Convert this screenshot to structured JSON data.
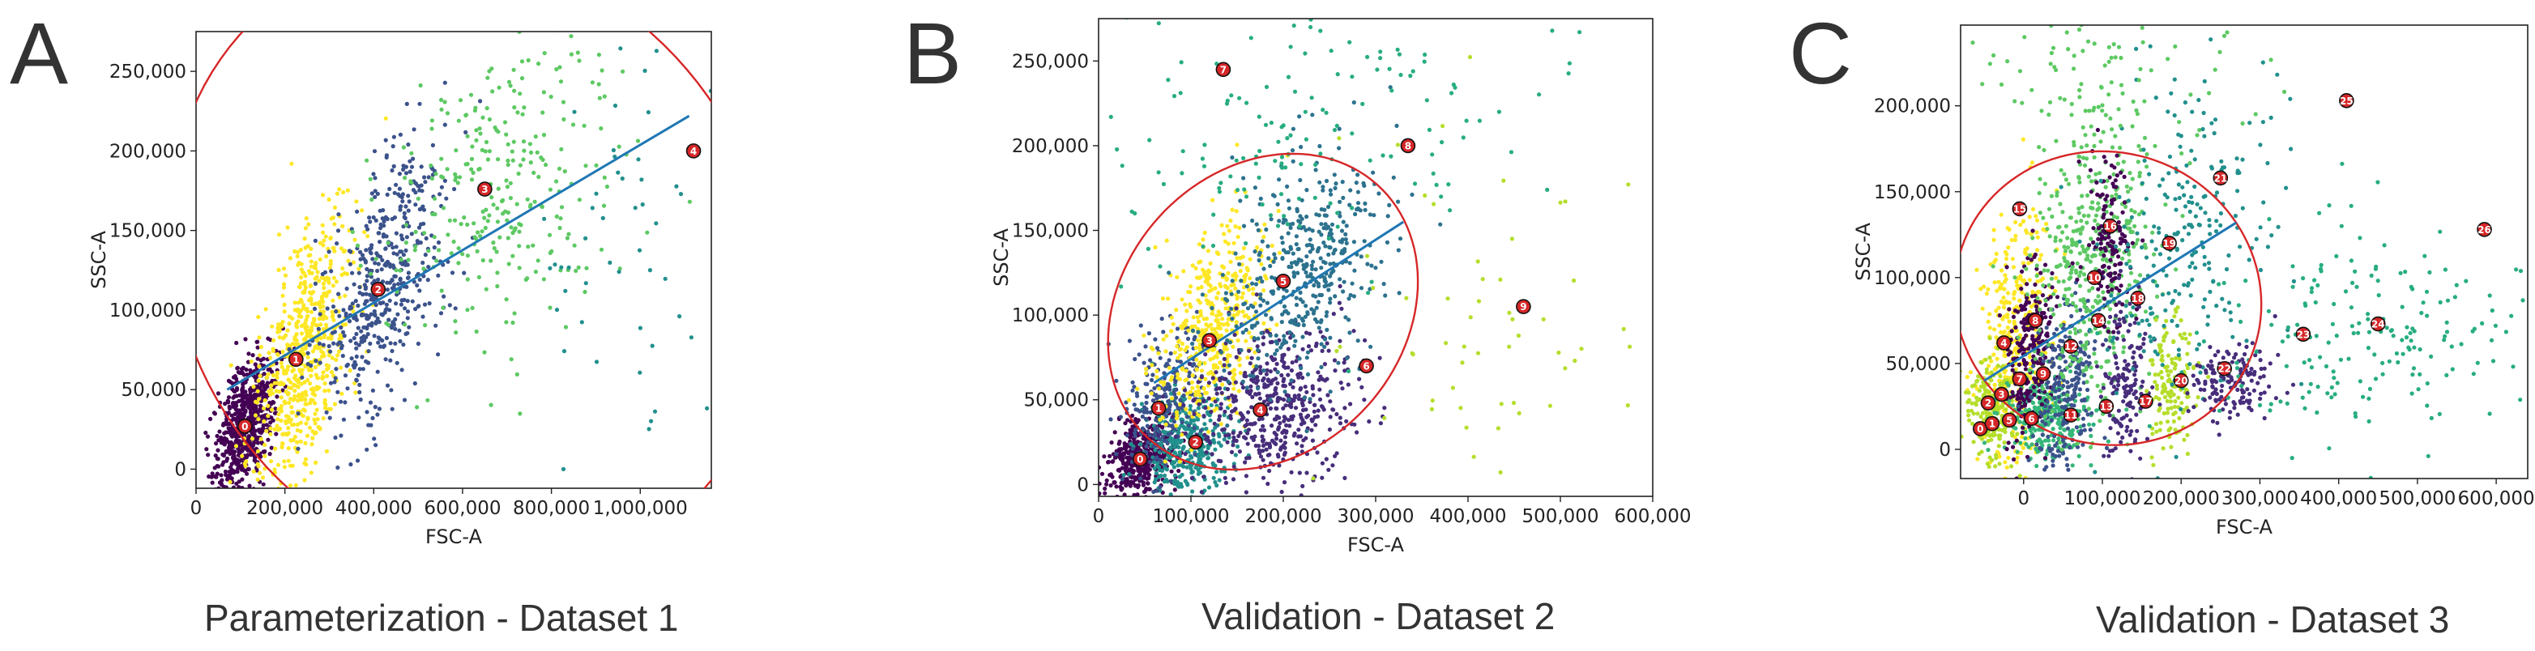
{
  "figure": {
    "letters": [
      "A",
      "B",
      "C"
    ],
    "captions": [
      "Parameterization - Dataset 1",
      "Validation - Dataset 2",
      "Validation - Dataset 3"
    ]
  },
  "colors": {
    "ellipse": "#d62728",
    "fit_line": "#1f77b4",
    "centroid": "#d62728",
    "palette": [
      "#440154",
      "#3b528b",
      "#21908d",
      "#5dc963",
      "#fde725",
      "#2c728e",
      "#b5de2b",
      "#472d7b",
      "#27ad81",
      "#35b779"
    ]
  },
  "chart_data": [
    {
      "type": "scatter",
      "title": "Parameterization - Dataset 1",
      "xlabel": "FSC-A",
      "ylabel": "SSC-A",
      "xlim": [
        0,
        1160000
      ],
      "ylim": [
        -12000,
        275000
      ],
      "xticks": [
        0,
        200000,
        400000,
        600000,
        800000,
        1000000
      ],
      "xtick_labels": [
        "0",
        "200,000",
        "400,000",
        "600,000",
        "800,000",
        "1,000,000"
      ],
      "yticks": [
        0,
        50000,
        100000,
        150000,
        200000,
        250000
      ],
      "ytick_labels": [
        "0",
        "50,000",
        "100,000",
        "150,000",
        "200,000",
        "250,000"
      ],
      "clusters": [
        {
          "color": "#440154",
          "cx": 110000,
          "cy": 28000,
          "sx": 35000,
          "sy": 22000,
          "rho": 0.5,
          "n": 650
        },
        {
          "color": "#fde725",
          "cx": 240000,
          "cy": 70000,
          "sx": 55000,
          "sy": 45000,
          "rho": 0.6,
          "n": 650
        },
        {
          "color": "#3b528b",
          "cx": 420000,
          "cy": 115000,
          "sx": 70000,
          "sy": 45000,
          "rho": 0.5,
          "n": 500
        },
        {
          "color": "#5dc963",
          "cx": 680000,
          "cy": 175000,
          "sx": 140000,
          "sy": 50000,
          "rho": 0.3,
          "n": 300
        },
        {
          "color": "#21908d",
          "cx": 1000000,
          "cy": 130000,
          "sx": 110000,
          "sy": 70000,
          "rho": 0.0,
          "n": 50
        }
      ],
      "centroids": [
        {
          "label": "0",
          "x": 110000,
          "y": 27000
        },
        {
          "label": "1",
          "x": 225000,
          "y": 69000
        },
        {
          "label": "2",
          "x": 410000,
          "y": 113000
        },
        {
          "label": "3",
          "x": 650000,
          "y": 176000
        },
        {
          "label": "4",
          "x": 1120000,
          "y": 200000
        }
      ],
      "fit_line": [
        [
          70000,
          50000
        ],
        [
          1110000,
          222000
        ]
      ],
      "ellipse": {
        "cx": 620000,
        "cy": 130000,
        "rx": 650000,
        "ry": 205000,
        "angle": 35
      }
    },
    {
      "type": "scatter",
      "title": "Validation - Dataset 2",
      "xlabel": "FSC-A",
      "ylabel": "SSC-A",
      "xlim": [
        0,
        600000
      ],
      "ylim": [
        -7000,
        275000
      ],
      "xticks": [
        0,
        100000,
        200000,
        300000,
        400000,
        500000,
        600000
      ],
      "xtick_labels": [
        "0",
        "100,000",
        "200,000",
        "300,000",
        "400,000",
        "500,000",
        "600,000"
      ],
      "yticks": [
        0,
        50000,
        100000,
        150000,
        200000,
        250000
      ],
      "ytick_labels": [
        "0",
        "50,000",
        "100,000",
        "150,000",
        "200,000",
        "250,000"
      ],
      "clusters": [
        {
          "color": "#440154",
          "cx": 45000,
          "cy": 15000,
          "sx": 18000,
          "sy": 12000,
          "rho": 0.2,
          "n": 450
        },
        {
          "color": "#21908d",
          "cx": 95000,
          "cy": 25000,
          "sx": 25000,
          "sy": 15000,
          "rho": 0.1,
          "n": 350
        },
        {
          "color": "#3b528b",
          "cx": 70000,
          "cy": 50000,
          "sx": 22000,
          "sy": 20000,
          "rho": 0.3,
          "n": 250
        },
        {
          "color": "#fde725",
          "cx": 125000,
          "cy": 95000,
          "sx": 30000,
          "sy": 30000,
          "rho": 0.5,
          "n": 450
        },
        {
          "color": "#472d7b",
          "cx": 190000,
          "cy": 45000,
          "sx": 45000,
          "sy": 25000,
          "rho": 0.2,
          "n": 500
        },
        {
          "color": "#2c728e",
          "cx": 220000,
          "cy": 125000,
          "sx": 45000,
          "sy": 35000,
          "rho": 0.4,
          "n": 450
        },
        {
          "color": "#27ad81",
          "cx": 230000,
          "cy": 200000,
          "sx": 110000,
          "sy": 45000,
          "rho": 0.1,
          "n": 150
        },
        {
          "color": "#b5de2b",
          "cx": 420000,
          "cy": 90000,
          "sx": 70000,
          "sy": 60000,
          "rho": 0.0,
          "n": 60
        }
      ],
      "centroids": [
        {
          "label": "0",
          "x": 45000,
          "y": 15000
        },
        {
          "label": "1",
          "x": 65000,
          "y": 45000
        },
        {
          "label": "2",
          "x": 105000,
          "y": 25000
        },
        {
          "label": "3",
          "x": 120000,
          "y": 85000
        },
        {
          "label": "4",
          "x": 175000,
          "y": 44000
        },
        {
          "label": "5",
          "x": 200000,
          "y": 120000
        },
        {
          "label": "6",
          "x": 290000,
          "y": 70000
        },
        {
          "label": "7",
          "x": 135000,
          "y": 245000
        },
        {
          "label": "8",
          "x": 335000,
          "y": 200000
        },
        {
          "label": "9",
          "x": 460000,
          "y": 105000
        }
      ],
      "fit_line": [
        [
          60000,
          60000
        ],
        [
          330000,
          155000
        ]
      ],
      "ellipse": {
        "cx": 178000,
        "cy": 102000,
        "rx": 185000,
        "ry": 83000,
        "angle": 48
      }
    },
    {
      "type": "scatter",
      "title": "Validation - Dataset 3",
      "xlabel": "FSC-A",
      "ylabel": "SSC-A",
      "xlim": [
        -80000,
        640000
      ],
      "ylim": [
        -17000,
        247000
      ],
      "xticks": [
        0,
        100000,
        200000,
        300000,
        400000,
        500000,
        600000
      ],
      "xtick_labels": [
        "0",
        "100,000",
        "200,000",
        "300,000",
        "400,000",
        "500,000",
        "600,000"
      ],
      "yticks": [
        0,
        50000,
        100000,
        150000,
        200000
      ],
      "ytick_labels": [
        "0",
        "50,000",
        "100,000",
        "150,000",
        "200,000"
      ],
      "clusters": [
        {
          "color": "#fde725",
          "cx": -10000,
          "cy": 60000,
          "sx": 25000,
          "sy": 40000,
          "rho": 0.2,
          "n": 400
        },
        {
          "color": "#b5de2b",
          "cx": -40000,
          "cy": 20000,
          "sx": 15000,
          "sy": 15000,
          "rho": 0.0,
          "n": 200
        },
        {
          "color": "#35b779",
          "cx": 30000,
          "cy": 20000,
          "sx": 25000,
          "sy": 12000,
          "rho": 0.0,
          "n": 300
        },
        {
          "color": "#440154",
          "cx": 10000,
          "cy": 60000,
          "sx": 15000,
          "sy": 25000,
          "rho": 0.3,
          "n": 250
        },
        {
          "color": "#3b528b",
          "cx": 55000,
          "cy": 35000,
          "sx": 20000,
          "sy": 30000,
          "rho": 0.3,
          "n": 250
        },
        {
          "color": "#5dc963",
          "cx": 90000,
          "cy": 110000,
          "sx": 40000,
          "sy": 45000,
          "rho": 0.2,
          "n": 450
        },
        {
          "color": "#440154",
          "cx": 110000,
          "cy": 125000,
          "sx": 15000,
          "sy": 25000,
          "rho": 0.0,
          "n": 150
        },
        {
          "color": "#472d7b",
          "cx": 130000,
          "cy": 35000,
          "sx": 15000,
          "sy": 25000,
          "rho": 0.0,
          "n": 150
        },
        {
          "color": "#b5de2b",
          "cx": 190000,
          "cy": 35000,
          "sx": 15000,
          "sy": 20000,
          "rho": 0.0,
          "n": 150
        },
        {
          "color": "#21908d",
          "cx": 200000,
          "cy": 120000,
          "sx": 60000,
          "sy": 50000,
          "rho": 0.2,
          "n": 250
        },
        {
          "color": "#472d7b",
          "cx": 265000,
          "cy": 40000,
          "sx": 25000,
          "sy": 12000,
          "rho": 0.0,
          "n": 150
        },
        {
          "color": "#27ad81",
          "cx": 420000,
          "cy": 65000,
          "sx": 110000,
          "sy": 35000,
          "rho": 0.2,
          "n": 200
        },
        {
          "color": "#5dc963",
          "cx": 100000,
          "cy": 220000,
          "sx": 100000,
          "sy": 25000,
          "rho": 0.0,
          "n": 80
        }
      ],
      "centroids": [
        {
          "label": "0",
          "x": -55000,
          "y": 12000
        },
        {
          "label": "1",
          "x": -40000,
          "y": 15000
        },
        {
          "label": "2",
          "x": -45000,
          "y": 27000
        },
        {
          "label": "3",
          "x": -28000,
          "y": 32000
        },
        {
          "label": "4",
          "x": -25000,
          "y": 62000
        },
        {
          "label": "5",
          "x": -18000,
          "y": 17000
        },
        {
          "label": "6",
          "x": 10000,
          "y": 18000
        },
        {
          "label": "7",
          "x": -5000,
          "y": 41000
        },
        {
          "label": "8",
          "x": 15000,
          "y": 75000
        },
        {
          "label": "9",
          "x": 25000,
          "y": 44000
        },
        {
          "label": "10",
          "x": 90000,
          "y": 100000
        },
        {
          "label": "11",
          "x": 60000,
          "y": 20000
        },
        {
          "label": "12",
          "x": 60000,
          "y": 60000
        },
        {
          "label": "13",
          "x": 105000,
          "y": 25000
        },
        {
          "label": "14",
          "x": 95000,
          "y": 75000
        },
        {
          "label": "15",
          "x": -5000,
          "y": 140000
        },
        {
          "label": "16",
          "x": 110000,
          "y": 130000
        },
        {
          "label": "17",
          "x": 155000,
          "y": 28000
        },
        {
          "label": "18",
          "x": 145000,
          "y": 88000
        },
        {
          "label": "19",
          "x": 185000,
          "y": 120000
        },
        {
          "label": "20",
          "x": 200000,
          "y": 40000
        },
        {
          "label": "21",
          "x": 250000,
          "y": 158000
        },
        {
          "label": "22",
          "x": 255000,
          "y": 47000
        },
        {
          "label": "23",
          "x": 355000,
          "y": 67000
        },
        {
          "label": "24",
          "x": 450000,
          "y": 73000
        },
        {
          "label": "25",
          "x": 410000,
          "y": 203000
        },
        {
          "label": "26",
          "x": 585000,
          "y": 128000
        }
      ],
      "fit_line": [
        [
          -50000,
          40000
        ],
        [
          270000,
          132000
        ]
      ],
      "ellipse": {
        "cx": 107000,
        "cy": 88000,
        "rx": 185000,
        "ry": 90000,
        "angle": 68
      }
    }
  ]
}
